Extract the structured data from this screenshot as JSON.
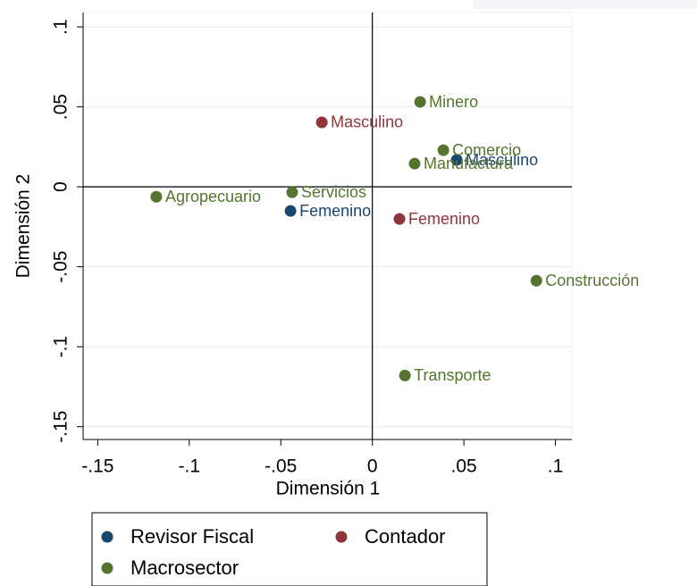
{
  "chart_data": {
    "type": "scatter",
    "x_label": "Dimensión 1",
    "y_label": "Dimensión 2",
    "xlim": [
      -0.158,
      0.109
    ],
    "ylim": [
      -0.158,
      0.109
    ],
    "xticks": [
      {
        "value": -0.15,
        "label": "-.15"
      },
      {
        "value": -0.1,
        "label": "-.1"
      },
      {
        "value": -0.05,
        "label": "-.05"
      },
      0,
      {
        "value": 0.05,
        "label": ".05"
      },
      {
        "value": 0.1,
        "label": ".1"
      }
    ],
    "yticks": [
      {
        "value": -0.15,
        "label": "-.15"
      },
      {
        "value": -0.1,
        "label": "-.1"
      },
      {
        "value": -0.05,
        "label": "-.05"
      },
      0,
      {
        "value": 0.05,
        "label": ".05"
      },
      {
        "value": 0.1,
        "label": ".1"
      }
    ],
    "grid": true,
    "series": [
      {
        "name": "Revisor Fiscal",
        "color": "#1a476f",
        "labels": [
          "Femenino",
          "Masculino"
        ],
        "x": [
          -0.0447,
          0.0461
        ],
        "y": [
          -0.0151,
          0.0168
        ]
      },
      {
        "name": "Contador",
        "color": "#90353b",
        "labels": [
          "Masculino",
          "Femenino"
        ],
        "x": [
          -0.0276,
          0.0148
        ],
        "y": [
          0.0403,
          -0.0201
        ]
      },
      {
        "name": "Macrosector",
        "color": "#55752f",
        "labels": [
          "Minero",
          "Comercio",
          "Manufactura",
          "Servicios",
          "Agropecuario",
          "Construcción",
          "Transporte"
        ],
        "x": [
          0.0261,
          0.0388,
          0.0231,
          -0.0438,
          -0.118,
          0.0896,
          0.0178
        ],
        "y": [
          0.0531,
          0.0229,
          0.0145,
          -0.0034,
          -0.0062,
          -0.0587,
          -0.118
        ]
      }
    ]
  }
}
